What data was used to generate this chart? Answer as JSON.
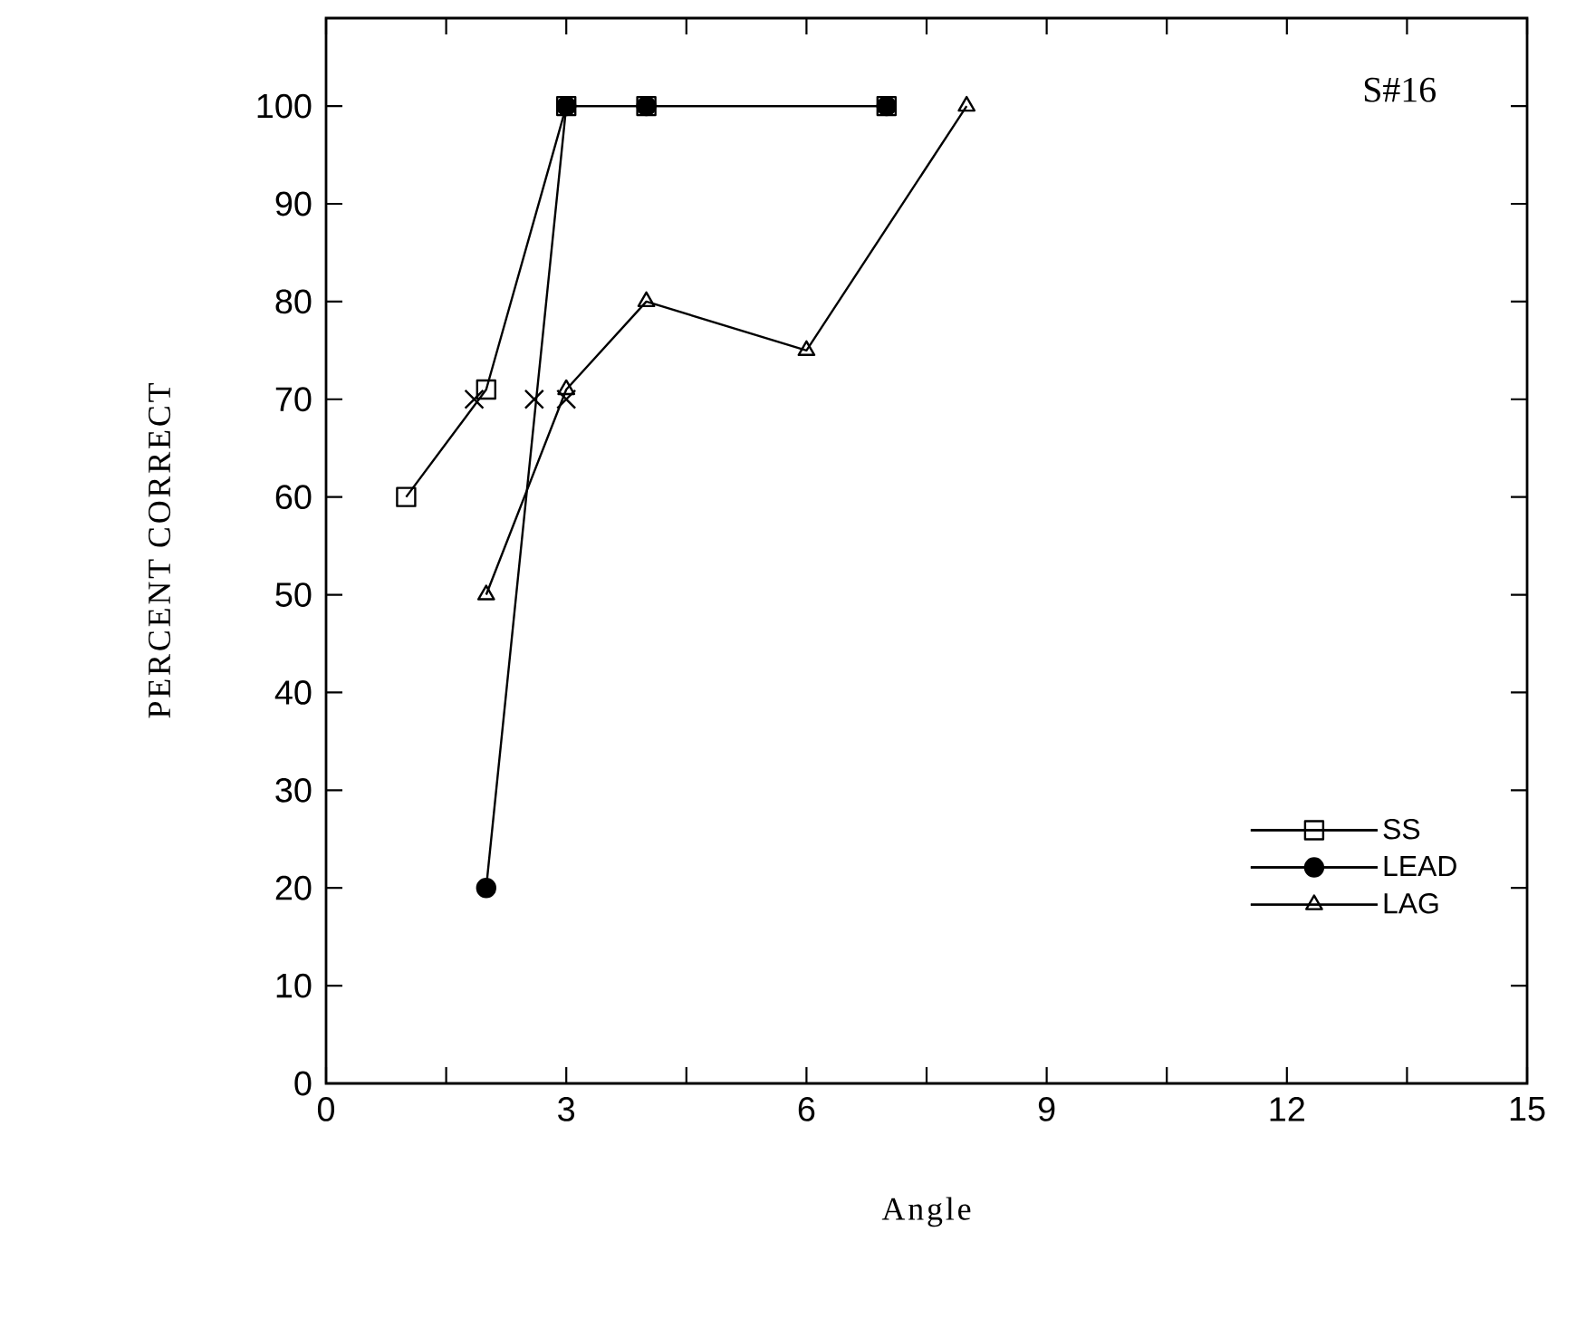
{
  "chart_data": {
    "type": "line",
    "xlabel": "Angle",
    "ylabel": "PERCENT CORRECT",
    "annotations": [
      "S#16"
    ],
    "xlim": [
      0,
      15
    ],
    "ylim": [
      0,
      109
    ],
    "xticks": [
      0,
      {
        "value": 1.5,
        "label": null
      },
      3,
      {
        "value": 4.5,
        "label": null
      },
      6,
      {
        "value": 7.5,
        "label": null
      },
      9,
      {
        "value": 10.5,
        "label": null
      },
      12,
      {
        "value": 13.5,
        "label": null
      },
      15
    ],
    "yticks": [
      0,
      10,
      20,
      30,
      40,
      50,
      60,
      70,
      80,
      90,
      100
    ],
    "grid": false,
    "legend": "bottom right",
    "line_style": "solid",
    "series": [
      {
        "name": "SS",
        "color": "#000000",
        "marker": "square",
        "x": [
          1,
          2,
          3,
          4,
          7
        ],
        "values": [
          60,
          71,
          100,
          100,
          100
        ]
      },
      {
        "name": "LEAD",
        "color": "#000000",
        "marker": "circle",
        "x": [
          2,
          3,
          4,
          7
        ],
        "values": [
          20,
          100,
          100,
          100
        ]
      },
      {
        "name": "LAG",
        "color": "#000000",
        "marker": "triangle",
        "x": [
          2,
          3,
          4,
          6,
          8
        ],
        "values": [
          50,
          71,
          80,
          75,
          100
        ]
      },
      {
        "type": "scatter",
        "color": "#000000",
        "marker": "cross",
        "x": [
          1.85,
          2.6,
          3
        ],
        "values": [
          70,
          70,
          70
        ]
      }
    ]
  }
}
